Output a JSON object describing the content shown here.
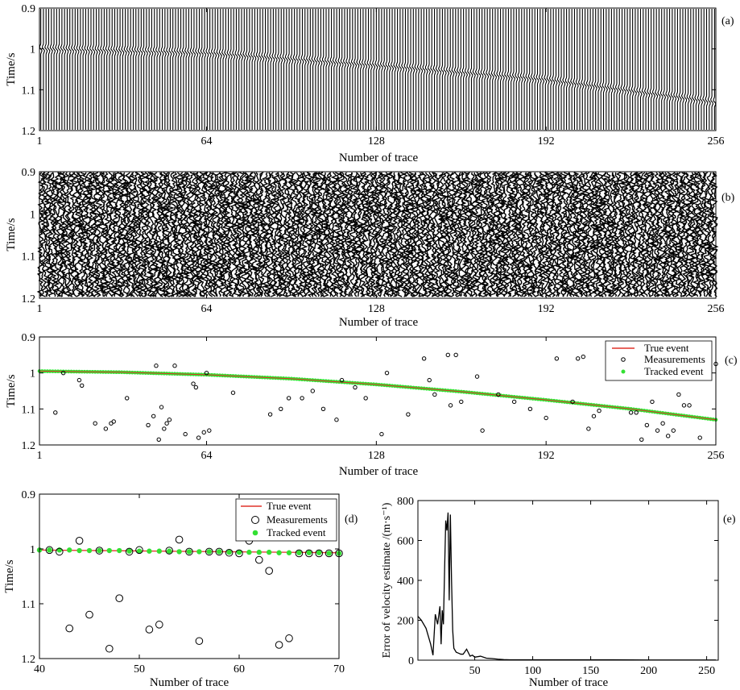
{
  "chart_data": [
    {
      "panel": "(a)",
      "type": "wiggle",
      "ylabel": "Time/s",
      "xlabel": "Number of trace",
      "xticks": [
        "1",
        "64",
        "128",
        "192",
        "256"
      ],
      "yticks": [
        "0.9",
        "1",
        "1.1",
        "1.2"
      ],
      "xlim": [
        1,
        256
      ],
      "ylim": [
        0.9,
        1.2
      ],
      "traces": 256,
      "event": {
        "x": [
          1,
          64,
          128,
          192,
          256
        ],
        "t": [
          1.0,
          1.01,
          1.04,
          1.075,
          1.13
        ]
      }
    },
    {
      "panel": "(b)",
      "type": "wiggle",
      "ylabel": "Time/s",
      "xlabel": "Number of trace",
      "xticks": [
        "1",
        "64",
        "128",
        "192",
        "256"
      ],
      "yticks": [
        "0.9",
        "1",
        "1.1",
        "1.2"
      ],
      "xlim": [
        1,
        256
      ],
      "ylim": [
        0.9,
        1.2
      ],
      "traces": 256,
      "noisy": true
    },
    {
      "panel": "(c)",
      "type": "scatter",
      "ylabel": "Time/s",
      "xlabel": "Number of trace",
      "xticks": [
        "1",
        "64",
        "128",
        "192",
        "256"
      ],
      "yticks": [
        "0.9",
        "1",
        "1.1",
        "1.2"
      ],
      "xlim": [
        1,
        256
      ],
      "ylim": [
        0.9,
        1.2
      ],
      "legend": [
        "True event",
        "Measurements",
        "Tracked event"
      ],
      "true_event": {
        "x": [
          1,
          32,
          64,
          96,
          128,
          160,
          192,
          224,
          256
        ],
        "y": [
          0.995,
          0.998,
          1.005,
          1.016,
          1.032,
          1.052,
          1.075,
          1.1,
          1.13
        ]
      },
      "measurements": {
        "x": [
          7,
          10,
          16,
          17,
          22,
          26,
          28,
          29,
          34,
          42,
          44,
          45,
          46,
          47,
          48,
          49,
          50,
          52,
          56,
          59,
          60,
          61,
          63,
          64,
          65,
          74,
          88,
          92,
          95,
          100,
          104,
          108,
          113,
          115,
          120,
          124,
          130,
          132,
          140,
          146,
          148,
          150,
          155,
          156,
          158,
          160,
          166,
          168,
          174,
          180,
          186,
          192,
          196,
          202,
          204,
          206,
          208,
          210,
          212,
          220,
          222,
          224,
          226,
          228,
          230,
          232,
          234,
          236,
          238,
          240,
          242,
          244,
          246,
          250,
          256
        ],
        "y": [
          1.11,
          1.0,
          1.02,
          1.035,
          1.14,
          1.155,
          1.14,
          1.135,
          1.07,
          1.145,
          1.12,
          0.98,
          1.185,
          1.095,
          1.155,
          1.14,
          1.13,
          0.98,
          1.17,
          1.03,
          1.04,
          1.18,
          1.165,
          1.0,
          1.16,
          1.055,
          1.115,
          1.1,
          1.07,
          1.07,
          1.05,
          1.1,
          1.13,
          1.02,
          1.04,
          1.07,
          1.17,
          1.0,
          1.115,
          0.96,
          1.02,
          1.06,
          0.95,
          1.09,
          0.95,
          1.08,
          1.01,
          1.16,
          1.06,
          1.08,
          1.1,
          1.125,
          0.96,
          1.08,
          0.96,
          0.955,
          1.155,
          1.12,
          1.105,
          1.0,
          0.99,
          1.11,
          1.11,
          1.185,
          1.145,
          1.08,
          1.16,
          1.14,
          1.175,
          1.16,
          1.06,
          1.09,
          1.09,
          1.18,
          0.975
        ]
      },
      "tracked_event": {
        "x": [
          1,
          32,
          64,
          96,
          128,
          160,
          192,
          224,
          256
        ],
        "y": [
          0.995,
          0.998,
          1.005,
          1.016,
          1.032,
          1.052,
          1.075,
          1.1,
          1.13
        ]
      }
    },
    {
      "panel": "(d)",
      "type": "scatter",
      "ylabel": "Time/s",
      "xlabel": "Number of trace",
      "xticks": [
        "40",
        "50",
        "60",
        "70"
      ],
      "yticks": [
        "0.9",
        "1",
        "1.1",
        "1.2"
      ],
      "xlim": [
        40,
        70
      ],
      "ylim": [
        0.9,
        1.2
      ],
      "legend": [
        "True event",
        "Measurements",
        "Tracked event"
      ],
      "true_event": {
        "x": [
          40,
          70
        ],
        "y": [
          1.002,
          1.007
        ]
      },
      "measurements": {
        "x": [
          41,
          42,
          43,
          44,
          45,
          46,
          47,
          48,
          49,
          50,
          51,
          52,
          53,
          54,
          55,
          56,
          57,
          58,
          59,
          60,
          61,
          62,
          63,
          64,
          65,
          66,
          67,
          68,
          69,
          70
        ],
        "y": [
          1.002,
          1.005,
          1.145,
          0.985,
          1.12,
          1.003,
          1.182,
          1.09,
          1.005,
          1.002,
          1.147,
          1.138,
          1.003,
          0.983,
          1.005,
          1.168,
          1.005,
          1.005,
          1.007,
          1.008,
          0.985,
          1.02,
          1.04,
          1.175,
          1.163,
          1.008,
          1.008,
          1.008,
          1.008,
          1.008
        ]
      },
      "tracked_event": {
        "x": [
          40,
          41,
          42,
          43,
          44,
          45,
          46,
          47,
          48,
          49,
          50,
          51,
          52,
          53,
          54,
          55,
          56,
          57,
          58,
          59,
          60,
          61,
          62,
          63,
          64,
          65,
          66,
          67,
          68,
          69,
          70
        ],
        "y": [
          1.002,
          1.002,
          1.002,
          1.002,
          1.003,
          1.003,
          1.003,
          1.003,
          1.003,
          1.004,
          1.004,
          1.004,
          1.004,
          1.004,
          1.005,
          1.005,
          1.005,
          1.005,
          1.005,
          1.006,
          1.006,
          1.006,
          1.006,
          1.006,
          1.007,
          1.007,
          1.007,
          1.007,
          1.007,
          1.008,
          1.008
        ]
      }
    },
    {
      "panel": "(e)",
      "type": "line",
      "ylabel": "Error of velocity estimate /(m·s⁻¹)",
      "xlabel": "Number of trace",
      "xticks": [
        "50",
        "100",
        "150",
        "200",
        "250"
      ],
      "yticks": [
        "0",
        "200",
        "400",
        "600",
        "800"
      ],
      "xlim": [
        1,
        260
      ],
      "ylim": [
        0,
        800
      ],
      "x": [
        1,
        4,
        8,
        12,
        14,
        16,
        18,
        20,
        21,
        22,
        23,
        24,
        25,
        26,
        27,
        28,
        29,
        30,
        31,
        32,
        34,
        36,
        38,
        40,
        43,
        46,
        48,
        50,
        55,
        60,
        65,
        70,
        75,
        80,
        90,
        100,
        130,
        160,
        200,
        258
      ],
      "y": [
        220,
        200,
        160,
        80,
        25,
        230,
        180,
        270,
        80,
        250,
        180,
        450,
        700,
        650,
        740,
        300,
        730,
        400,
        150,
        60,
        40,
        35,
        30,
        30,
        55,
        20,
        25,
        15,
        20,
        10,
        8,
        5,
        3,
        2,
        2,
        2,
        2,
        2,
        1,
        1
      ]
    }
  ]
}
